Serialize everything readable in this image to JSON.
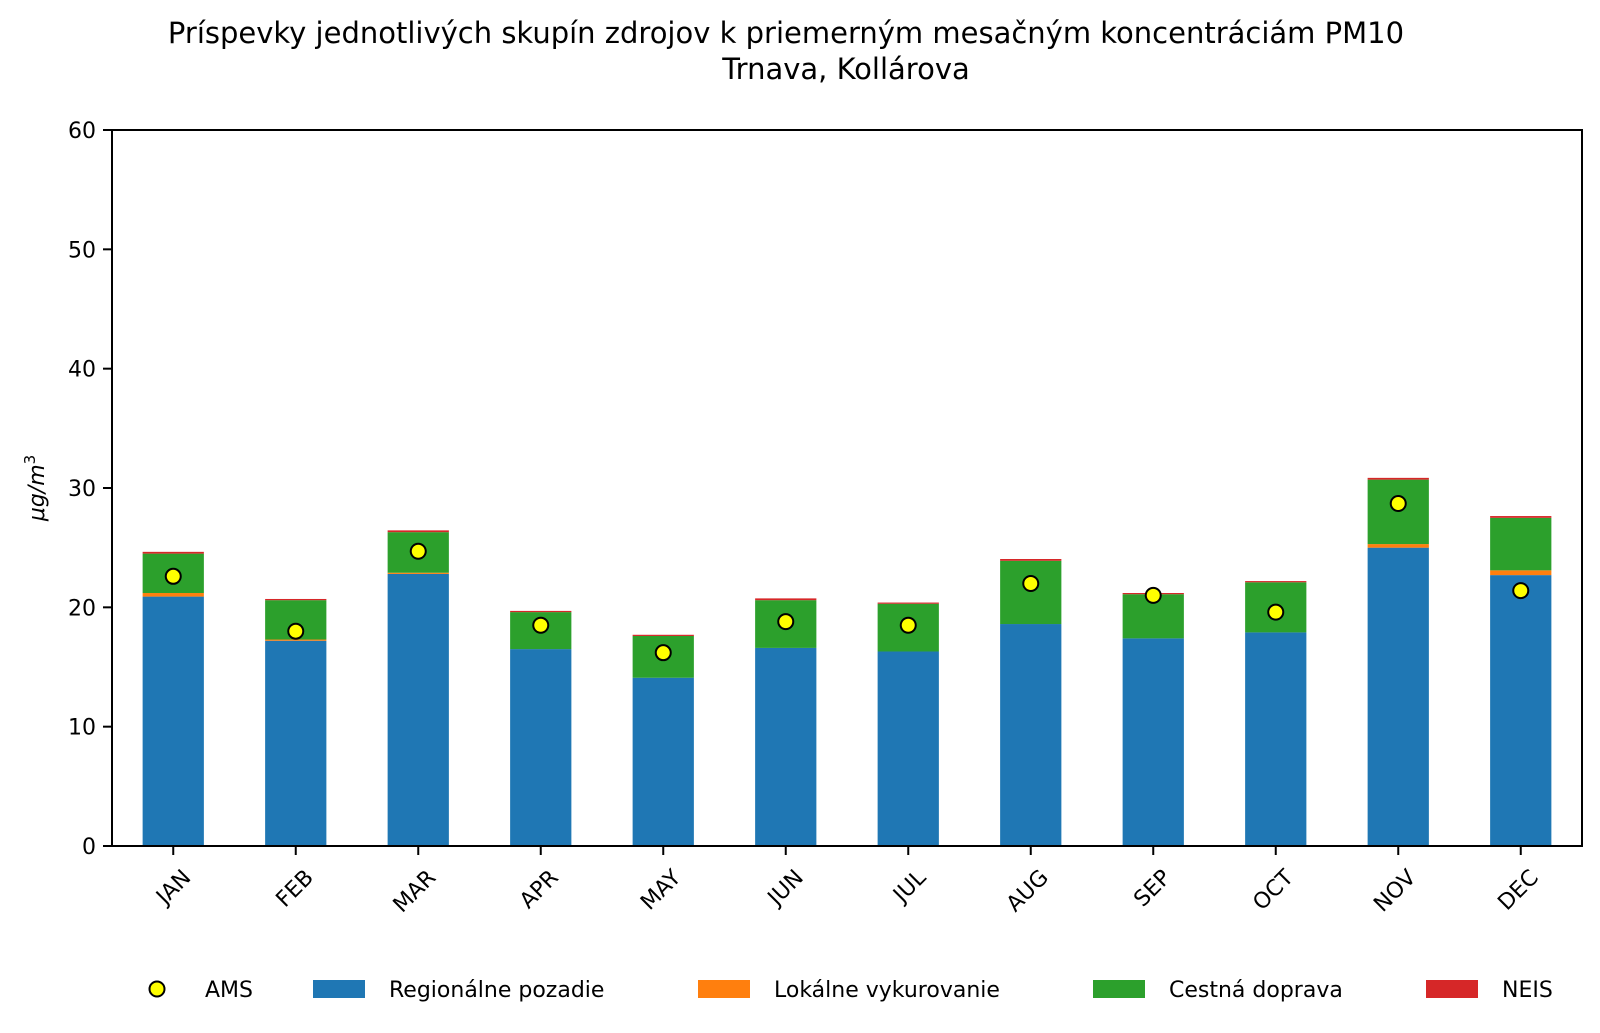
{
  "chart_data": {
    "type": "bar",
    "stacked": true,
    "title": "Príspevky jednotlivých skupín zdrojov k priemerným mesačným koncentráciám PM10",
    "subtitle": "Trnava, Kollárova",
    "xlabel": "",
    "ylabel": "μg/m",
    "ylabel_superscript": "3",
    "ylim": [
      0,
      60
    ],
    "yticks": [
      0,
      10,
      20,
      30,
      40,
      50,
      60
    ],
    "categories": [
      "JAN",
      "FEB",
      "MAR",
      "APR",
      "MAY",
      "JUN",
      "JUL",
      "AUG",
      "SEP",
      "OCT",
      "NOV",
      "DEC"
    ],
    "series": [
      {
        "name": "Regionálne pozadie",
        "color": "#1f77b4",
        "values": [
          20.9,
          17.2,
          22.8,
          16.5,
          14.1,
          16.6,
          16.3,
          18.6,
          17.4,
          17.9,
          25.0,
          22.7
        ]
      },
      {
        "name": "Lokálne vykurovanie",
        "color": "#ff7f0e",
        "values": [
          0.3,
          0.1,
          0.1,
          0.0,
          0.0,
          0.0,
          0.0,
          0.0,
          0.0,
          0.0,
          0.3,
          0.4
        ]
      },
      {
        "name": "Cestná doprava",
        "color": "#2ca02c",
        "values": [
          3.3,
          3.3,
          3.4,
          3.1,
          3.5,
          4.0,
          4.0,
          5.3,
          3.7,
          4.2,
          5.4,
          4.4
        ]
      },
      {
        "name": "NEIS",
        "color": "#d62728",
        "values": [
          0.15,
          0.1,
          0.15,
          0.1,
          0.1,
          0.15,
          0.1,
          0.15,
          0.1,
          0.1,
          0.15,
          0.15
        ]
      }
    ],
    "markers": {
      "name": "AMS",
      "color": "#ffff00",
      "edge_color": "#000000",
      "values": [
        22.6,
        18.0,
        24.7,
        18.5,
        16.2,
        18.8,
        18.5,
        22.0,
        21.0,
        19.6,
        28.7,
        21.4
      ]
    },
    "legend": {
      "placement": "bottom",
      "entries": [
        {
          "label": "AMS",
          "kind": "marker",
          "color": "#ffff00"
        },
        {
          "label": "Regionálne pozadie",
          "kind": "patch",
          "color": "#1f77b4"
        },
        {
          "label": "Lokálne vykurovanie",
          "kind": "patch",
          "color": "#ff7f0e"
        },
        {
          "label": "Cestná doprava",
          "kind": "patch",
          "color": "#2ca02c"
        },
        {
          "label": "NEIS",
          "kind": "patch",
          "color": "#d62728"
        }
      ]
    }
  }
}
